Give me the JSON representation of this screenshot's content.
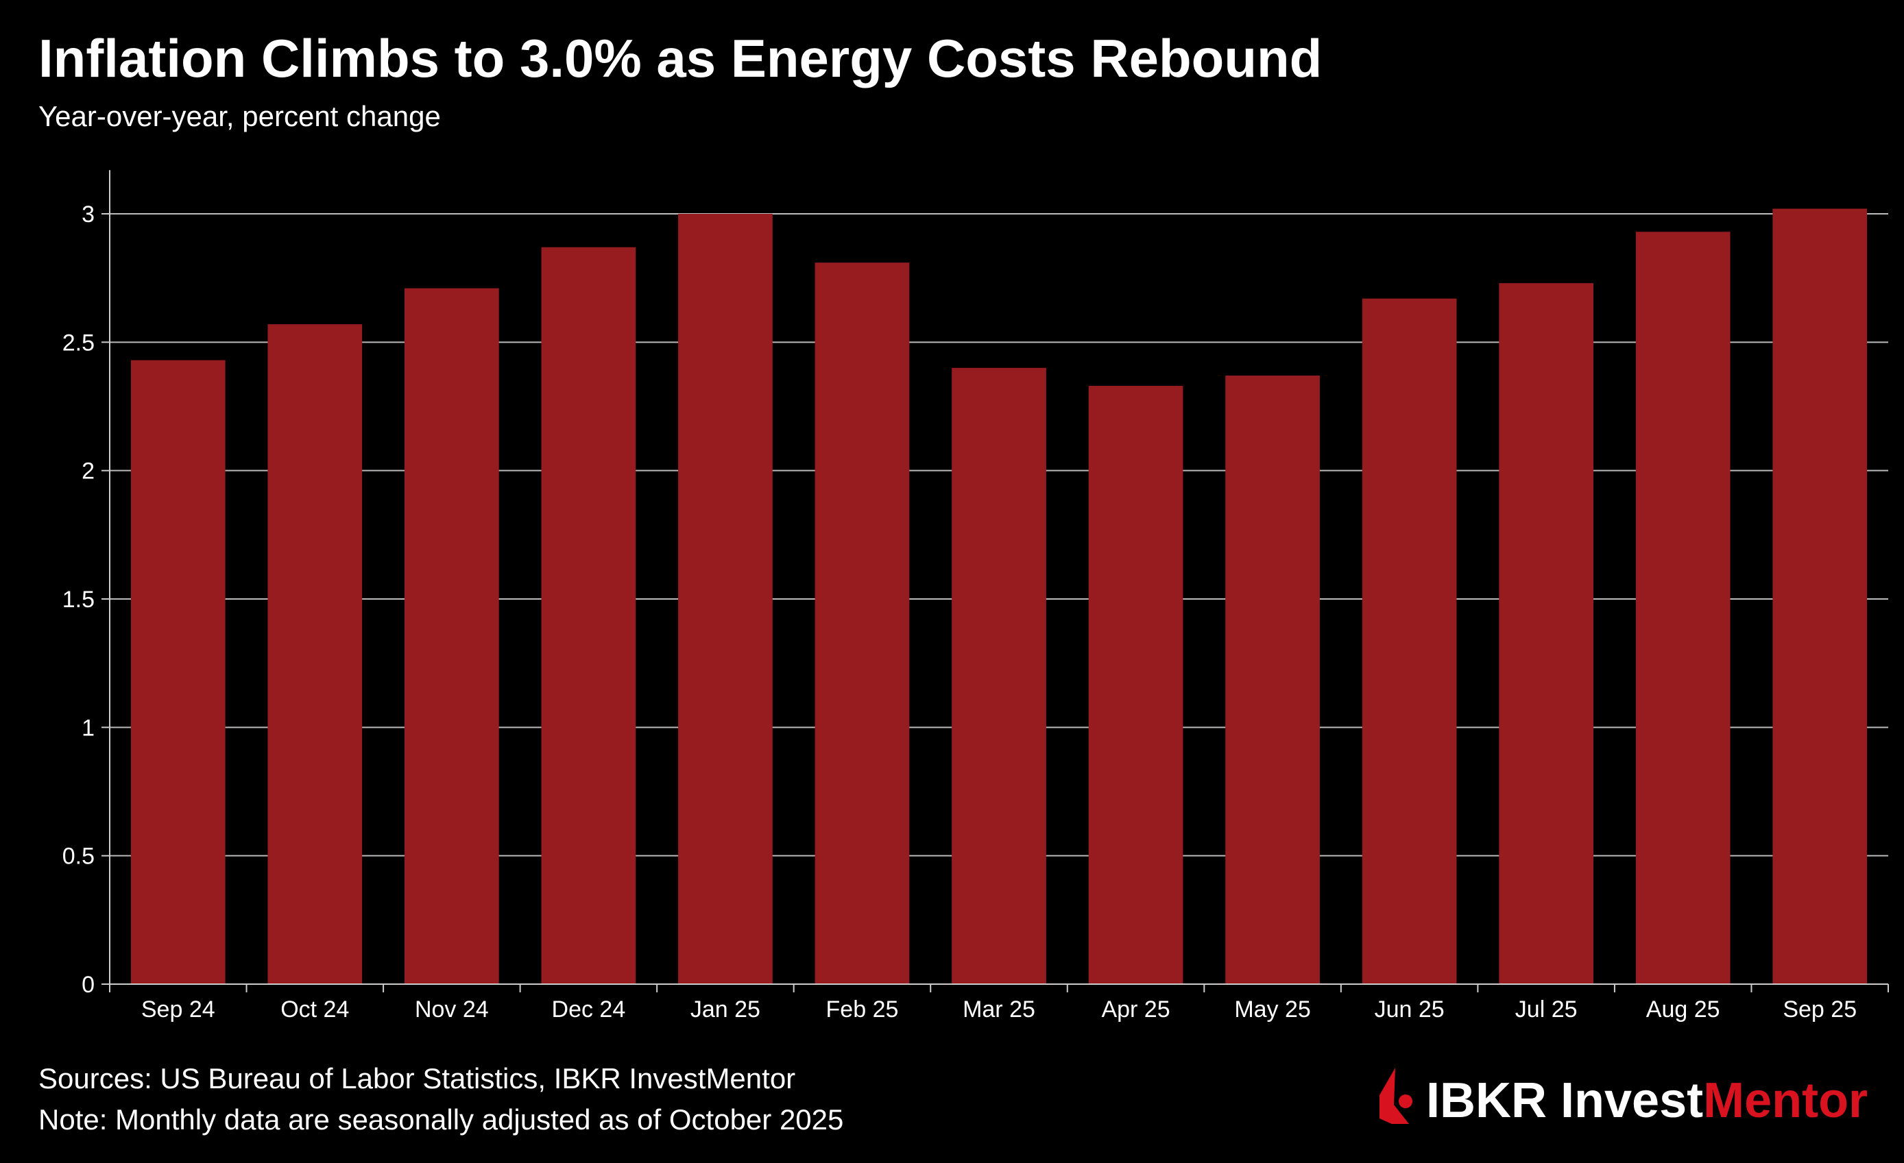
{
  "title": "Inflation Climbs to 3.0% as Energy Costs Rebound",
  "subtitle": "Year-over-year, percent change",
  "footer": {
    "sources": "Sources: US Bureau of Labor Statistics, IBKR InvestMentor",
    "note": "Note: Monthly data are seasonally adjusted as of October 2025"
  },
  "logo": {
    "text_white": "IBKR Invest",
    "text_red": "Mentor",
    "accent": "#d9121f"
  },
  "chart_data": {
    "type": "bar",
    "title": "Inflation Climbs to 3.0% as Energy Costs Rebound",
    "subtitle": "Year-over-year, percent change",
    "xlabel": "",
    "ylabel": "",
    "categories": [
      "Sep 24",
      "Oct 24",
      "Nov 24",
      "Dec 24",
      "Jan 25",
      "Feb 25",
      "Mar 25",
      "Apr 25",
      "May 25",
      "Jun 25",
      "Jul 25",
      "Aug 25",
      "Sep 25"
    ],
    "values": [
      2.43,
      2.57,
      2.71,
      2.87,
      3.0,
      2.81,
      2.4,
      2.33,
      2.37,
      2.67,
      2.73,
      2.93,
      3.02
    ],
    "ylim": [
      0,
      3.17
    ],
    "yticks": [
      "0",
      "0.5",
      "1",
      "1.5",
      "2",
      "2.5",
      "3"
    ],
    "grid": true,
    "bar_color": "#961c20",
    "background": "#000000"
  }
}
